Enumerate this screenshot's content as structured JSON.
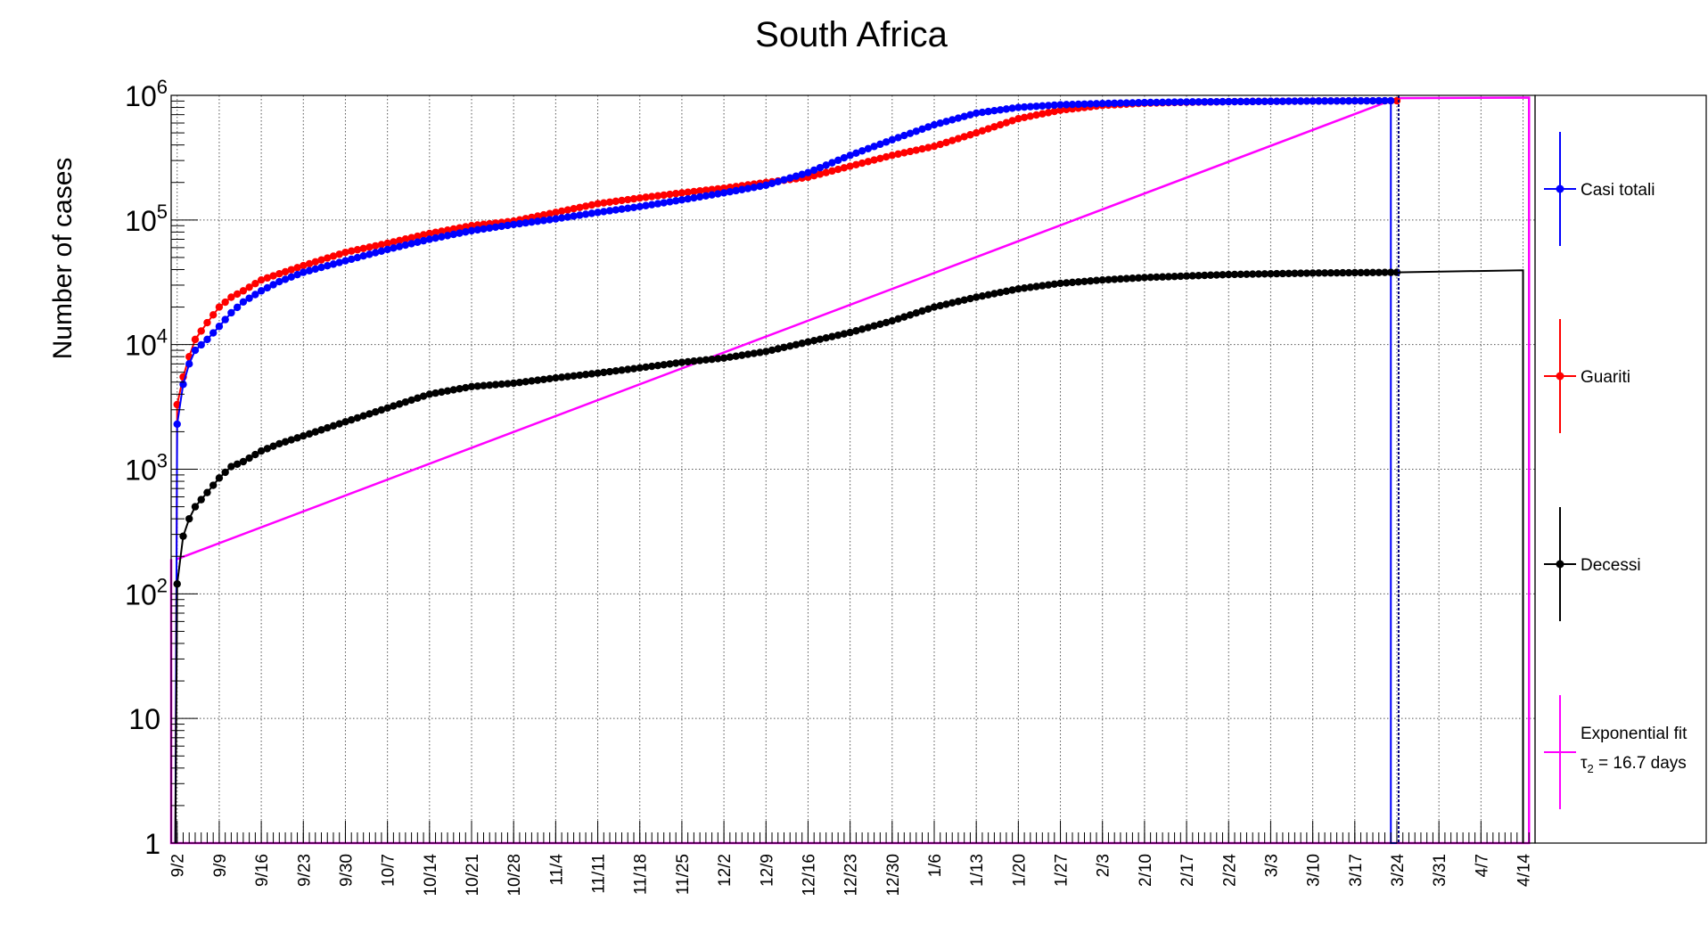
{
  "chart_data": {
    "type": "line",
    "title": "South Africa",
    "ylabel": "Number of cases",
    "xlabel": "",
    "y_scale": "log",
    "ylim": [
      1,
      1000000
    ],
    "y_ticks": [
      {
        "value": 1,
        "label": "1"
      },
      {
        "value": 10,
        "label": "10"
      },
      {
        "value": 100,
        "label": "10",
        "exp": "2"
      },
      {
        "value": 1000,
        "label": "10",
        "exp": "3"
      },
      {
        "value": 10000,
        "label": "10",
        "exp": "4"
      },
      {
        "value": 100000,
        "label": "10",
        "exp": "5"
      },
      {
        "value": 1000000,
        "label": "10",
        "exp": "6"
      }
    ],
    "x_unit": "days since first plotted point (9/1)",
    "xlim": [
      0,
      227
    ],
    "x_ticks": [
      {
        "day": 1,
        "label": "9/2"
      },
      {
        "day": 8,
        "label": "9/9"
      },
      {
        "day": 15,
        "label": "9/16"
      },
      {
        "day": 22,
        "label": "9/23"
      },
      {
        "day": 29,
        "label": "9/30"
      },
      {
        "day": 36,
        "label": "10/7"
      },
      {
        "day": 43,
        "label": "10/14"
      },
      {
        "day": 50,
        "label": "10/21"
      },
      {
        "day": 57,
        "label": "10/28"
      },
      {
        "day": 64,
        "label": "11/4"
      },
      {
        "day": 71,
        "label": "11/11"
      },
      {
        "day": 78,
        "label": "11/18"
      },
      {
        "day": 85,
        "label": "11/25"
      },
      {
        "day": 92,
        "label": "12/2"
      },
      {
        "day": 99,
        "label": "12/9"
      },
      {
        "day": 106,
        "label": "12/16"
      },
      {
        "day": 113,
        "label": "12/23"
      },
      {
        "day": 120,
        "label": "12/30"
      },
      {
        "day": 127,
        "label": "1/6"
      },
      {
        "day": 134,
        "label": "1/13"
      },
      {
        "day": 141,
        "label": "1/20"
      },
      {
        "day": 148,
        "label": "1/27"
      },
      {
        "day": 155,
        "label": "2/3"
      },
      {
        "day": 162,
        "label": "2/10"
      },
      {
        "day": 169,
        "label": "2/17"
      },
      {
        "day": 176,
        "label": "2/24"
      },
      {
        "day": 183,
        "label": "3/3"
      },
      {
        "day": 190,
        "label": "3/10"
      },
      {
        "day": 197,
        "label": "3/17"
      },
      {
        "day": 204,
        "label": "3/24"
      },
      {
        "day": 211,
        "label": "3/31"
      },
      {
        "day": 218,
        "label": "4/7"
      },
      {
        "day": 225,
        "label": "4/14"
      }
    ],
    "grid": true,
    "legend_position": "right",
    "series": [
      {
        "name": "Casi totali",
        "color": "#0000ff",
        "marker": "circle",
        "start_day": 1,
        "end_day": 203,
        "anchors": [
          [
            1,
            2300
          ],
          [
            2,
            4800
          ],
          [
            3,
            7000
          ],
          [
            4,
            9000
          ],
          [
            6,
            11000
          ],
          [
            8,
            14000
          ],
          [
            10,
            18000
          ],
          [
            12,
            22000
          ],
          [
            15,
            27000
          ],
          [
            18,
            32000
          ],
          [
            22,
            38000
          ],
          [
            29,
            47000
          ],
          [
            36,
            58000
          ],
          [
            43,
            70000
          ],
          [
            50,
            82000
          ],
          [
            57,
            92000
          ],
          [
            64,
            102000
          ],
          [
            71,
            115000
          ],
          [
            78,
            128000
          ],
          [
            85,
            145000
          ],
          [
            92,
            165000
          ],
          [
            99,
            190000
          ],
          [
            106,
            240000
          ],
          [
            113,
            330000
          ],
          [
            120,
            440000
          ],
          [
            127,
            580000
          ],
          [
            134,
            720000
          ],
          [
            141,
            800000
          ],
          [
            148,
            840000
          ],
          [
            155,
            860000
          ],
          [
            162,
            875000
          ],
          [
            169,
            885000
          ],
          [
            176,
            890000
          ],
          [
            183,
            895000
          ],
          [
            190,
            900000
          ],
          [
            203,
            905000
          ]
        ],
        "tail": [
          [
            203,
            905000
          ],
          [
            203,
            1
          ],
          [
            204,
            1
          ]
        ]
      },
      {
        "name": "Guariti",
        "color": "#ff0000",
        "marker": "circle",
        "start_day": 1,
        "end_day": 204,
        "anchors": [
          [
            1,
            3300
          ],
          [
            2,
            5500
          ],
          [
            3,
            8000
          ],
          [
            4,
            11000
          ],
          [
            6,
            15000
          ],
          [
            8,
            20000
          ],
          [
            10,
            24000
          ],
          [
            12,
            27000
          ],
          [
            15,
            33000
          ],
          [
            18,
            37000
          ],
          [
            22,
            43000
          ],
          [
            29,
            55000
          ],
          [
            36,
            65000
          ],
          [
            43,
            78000
          ],
          [
            50,
            90000
          ],
          [
            57,
            98000
          ],
          [
            64,
            115000
          ],
          [
            71,
            135000
          ],
          [
            78,
            150000
          ],
          [
            85,
            165000
          ],
          [
            92,
            180000
          ],
          [
            99,
            200000
          ],
          [
            106,
            220000
          ],
          [
            113,
            270000
          ],
          [
            120,
            330000
          ],
          [
            127,
            390000
          ],
          [
            134,
            500000
          ],
          [
            141,
            650000
          ],
          [
            148,
            760000
          ],
          [
            155,
            830000
          ],
          [
            162,
            865000
          ],
          [
            169,
            880000
          ],
          [
            176,
            890000
          ],
          [
            183,
            895000
          ],
          [
            190,
            900000
          ],
          [
            204,
            905000
          ]
        ],
        "tail": []
      },
      {
        "name": "Decessi",
        "color": "#000000",
        "marker": "circle",
        "start_day": 1,
        "end_day": 204,
        "anchors": [
          [
            0,
            1
          ],
          [
            1,
            120
          ],
          [
            2,
            290
          ],
          [
            3,
            400
          ],
          [
            4,
            500
          ],
          [
            6,
            650
          ],
          [
            8,
            850
          ],
          [
            10,
            1050
          ],
          [
            12,
            1150
          ],
          [
            15,
            1400
          ],
          [
            18,
            1600
          ],
          [
            22,
            1850
          ],
          [
            29,
            2400
          ],
          [
            36,
            3100
          ],
          [
            43,
            4000
          ],
          [
            50,
            4600
          ],
          [
            57,
            4900
          ],
          [
            64,
            5400
          ],
          [
            71,
            5900
          ],
          [
            78,
            6500
          ],
          [
            85,
            7200
          ],
          [
            92,
            7800
          ],
          [
            99,
            8800
          ],
          [
            106,
            10500
          ],
          [
            113,
            12500
          ],
          [
            120,
            15500
          ],
          [
            127,
            20000
          ],
          [
            134,
            24000
          ],
          [
            141,
            28000
          ],
          [
            148,
            31000
          ],
          [
            155,
            33000
          ],
          [
            162,
            34500
          ],
          [
            169,
            35500
          ],
          [
            176,
            36500
          ],
          [
            183,
            37000
          ],
          [
            190,
            37500
          ],
          [
            204,
            38000
          ]
        ],
        "tail": [
          [
            204,
            38000
          ],
          [
            225,
            39500
          ],
          [
            225,
            1
          ]
        ]
      },
      {
        "name": "Exponential fit",
        "name_line2": "= 16.7 days",
        "name_symbol": "τ",
        "name_subscript": "2",
        "color": "#ff00ff",
        "marker": "none",
        "line": [
          [
            1,
            190
          ],
          [
            204,
            950000
          ]
        ],
        "tail": [
          [
            204,
            950000
          ],
          [
            226,
            960000
          ],
          [
            226,
            1
          ],
          [
            0,
            1
          ],
          [
            0,
            190
          ]
        ]
      }
    ],
    "navy_dashed_line_day": 204
  }
}
